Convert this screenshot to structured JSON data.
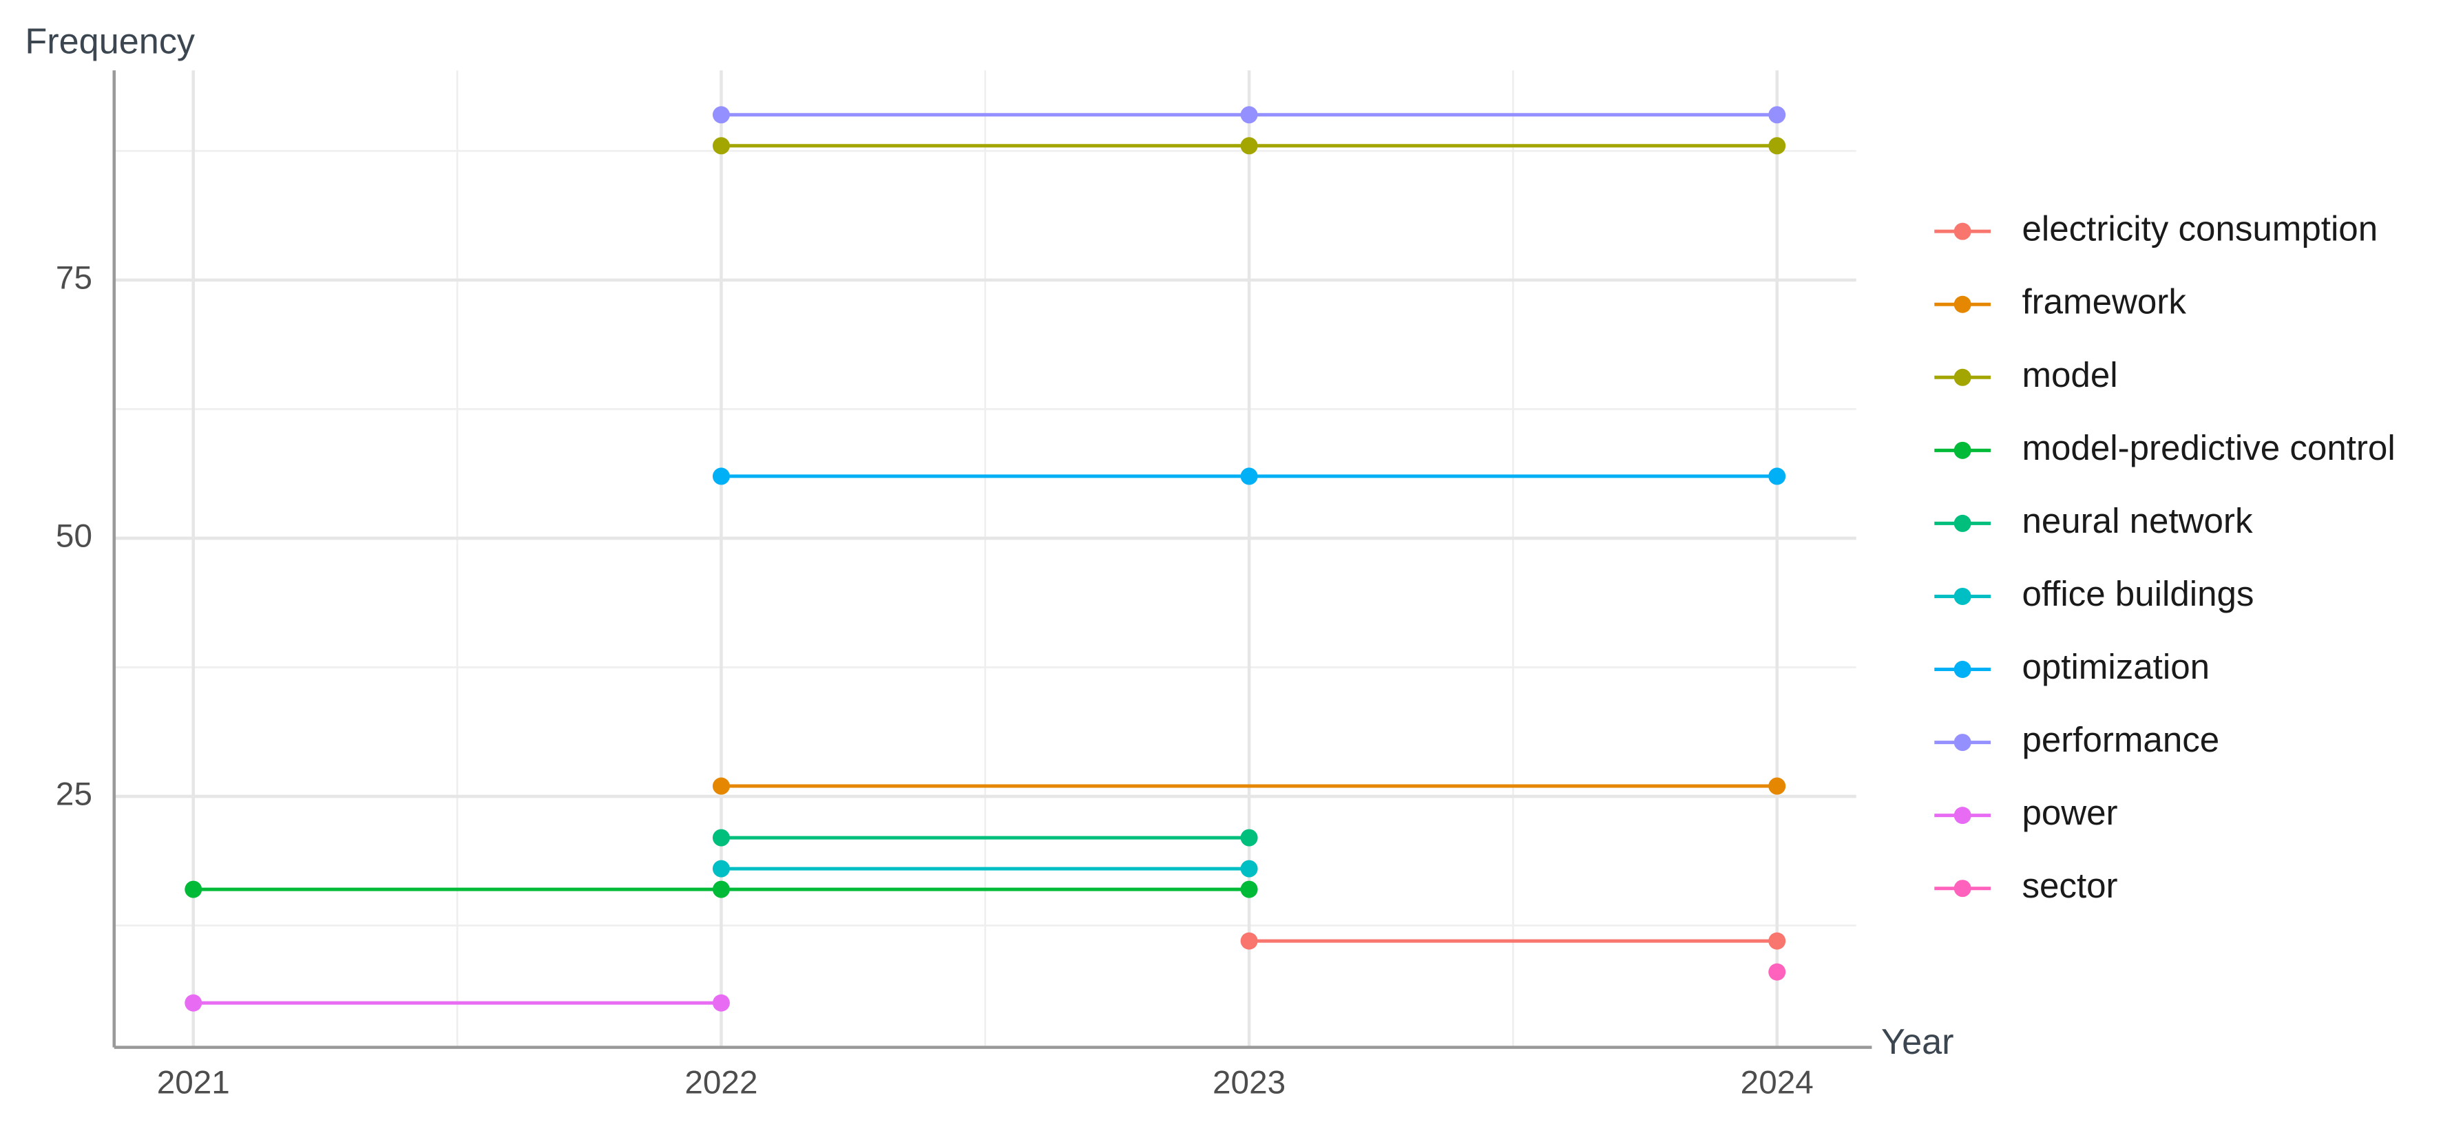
{
  "chart_data": {
    "type": "line",
    "x_label": "Year",
    "y_label": "Frequency",
    "xlim": [
      2020.85,
      2024.15
    ],
    "xticks": [
      2021,
      2022,
      2023,
      2024
    ],
    "xminorticks": [
      2021.5,
      2022.5,
      2023.5
    ],
    "ylim": [
      0.7,
      95.3
    ],
    "yticks": [
      25,
      50,
      75
    ],
    "yminorticks": [
      12.5,
      37.5,
      62.5,
      87.5
    ],
    "grid": true,
    "legend": "right",
    "series": [
      {
        "name": "electricity consumption",
        "color": "#F8766D",
        "x": [
          2023,
          2024
        ],
        "values": [
          11,
          11
        ]
      },
      {
        "name": "framework",
        "color": "#E58700",
        "x": [
          2022,
          2024
        ],
        "values": [
          26,
          26
        ]
      },
      {
        "name": "model",
        "color": "#A3A500",
        "x": [
          2022,
          2023,
          2024
        ],
        "values": [
          88,
          88,
          88
        ]
      },
      {
        "name": "model-predictive control",
        "color": "#00BA38",
        "x": [
          2021,
          2022,
          2023
        ],
        "values": [
          16,
          16,
          16
        ]
      },
      {
        "name": "neural network",
        "color": "#00BF7D",
        "x": [
          2022,
          2023
        ],
        "values": [
          21,
          21
        ]
      },
      {
        "name": "office buildings",
        "color": "#00BFC4",
        "x": [
          2022,
          2023
        ],
        "values": [
          18,
          18
        ]
      },
      {
        "name": "optimization",
        "color": "#00B0F6",
        "x": [
          2022,
          2023,
          2024
        ],
        "values": [
          56,
          56,
          56
        ]
      },
      {
        "name": "performance",
        "color": "#9590FF",
        "x": [
          2022,
          2023,
          2024
        ],
        "values": [
          91,
          91,
          91
        ]
      },
      {
        "name": "power",
        "color": "#E76BF3",
        "x": [
          2021,
          2022
        ],
        "values": [
          5,
          5
        ]
      },
      {
        "name": "sector",
        "color": "#FF62BC",
        "x": [
          2024
        ],
        "values": [
          8
        ]
      }
    ]
  }
}
